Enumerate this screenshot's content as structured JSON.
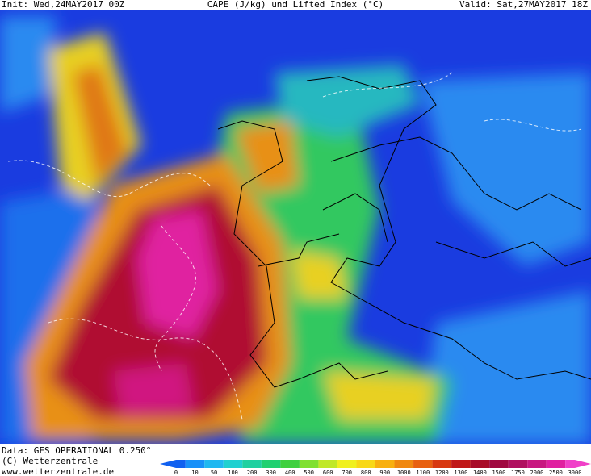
{
  "header": {
    "init": "Init: Wed,24MAY2017 00Z",
    "title": "CAPE (J/kg) und Lifted Index (°C)",
    "valid": "Valid: Sat,27MAY2017 18Z"
  },
  "footer": {
    "data": "Data: GFS OPERATIONAL 0.250°",
    "copyright": "(C) Wetterzentrale",
    "url": "www.wetterzentrale.de"
  },
  "colorbar": {
    "labels": [
      0,
      10,
      50,
      100,
      200,
      300,
      400,
      500,
      600,
      700,
      800,
      900,
      1000,
      1100,
      1200,
      1300,
      1400,
      1500,
      1750,
      2000,
      2500,
      3000
    ],
    "colors": [
      "#1060f0",
      "#1890f8",
      "#20b8f0",
      "#20d0d0",
      "#20d0a0",
      "#20d070",
      "#40d040",
      "#80e030",
      "#c0e828",
      "#f0f020",
      "#f8d818",
      "#f8b010",
      "#f08810",
      "#e86010",
      "#d83810",
      "#c01818",
      "#a80c28",
      "#a00840",
      "#b01060",
      "#c81880",
      "#e020a0",
      "#f040c8"
    ]
  }
}
